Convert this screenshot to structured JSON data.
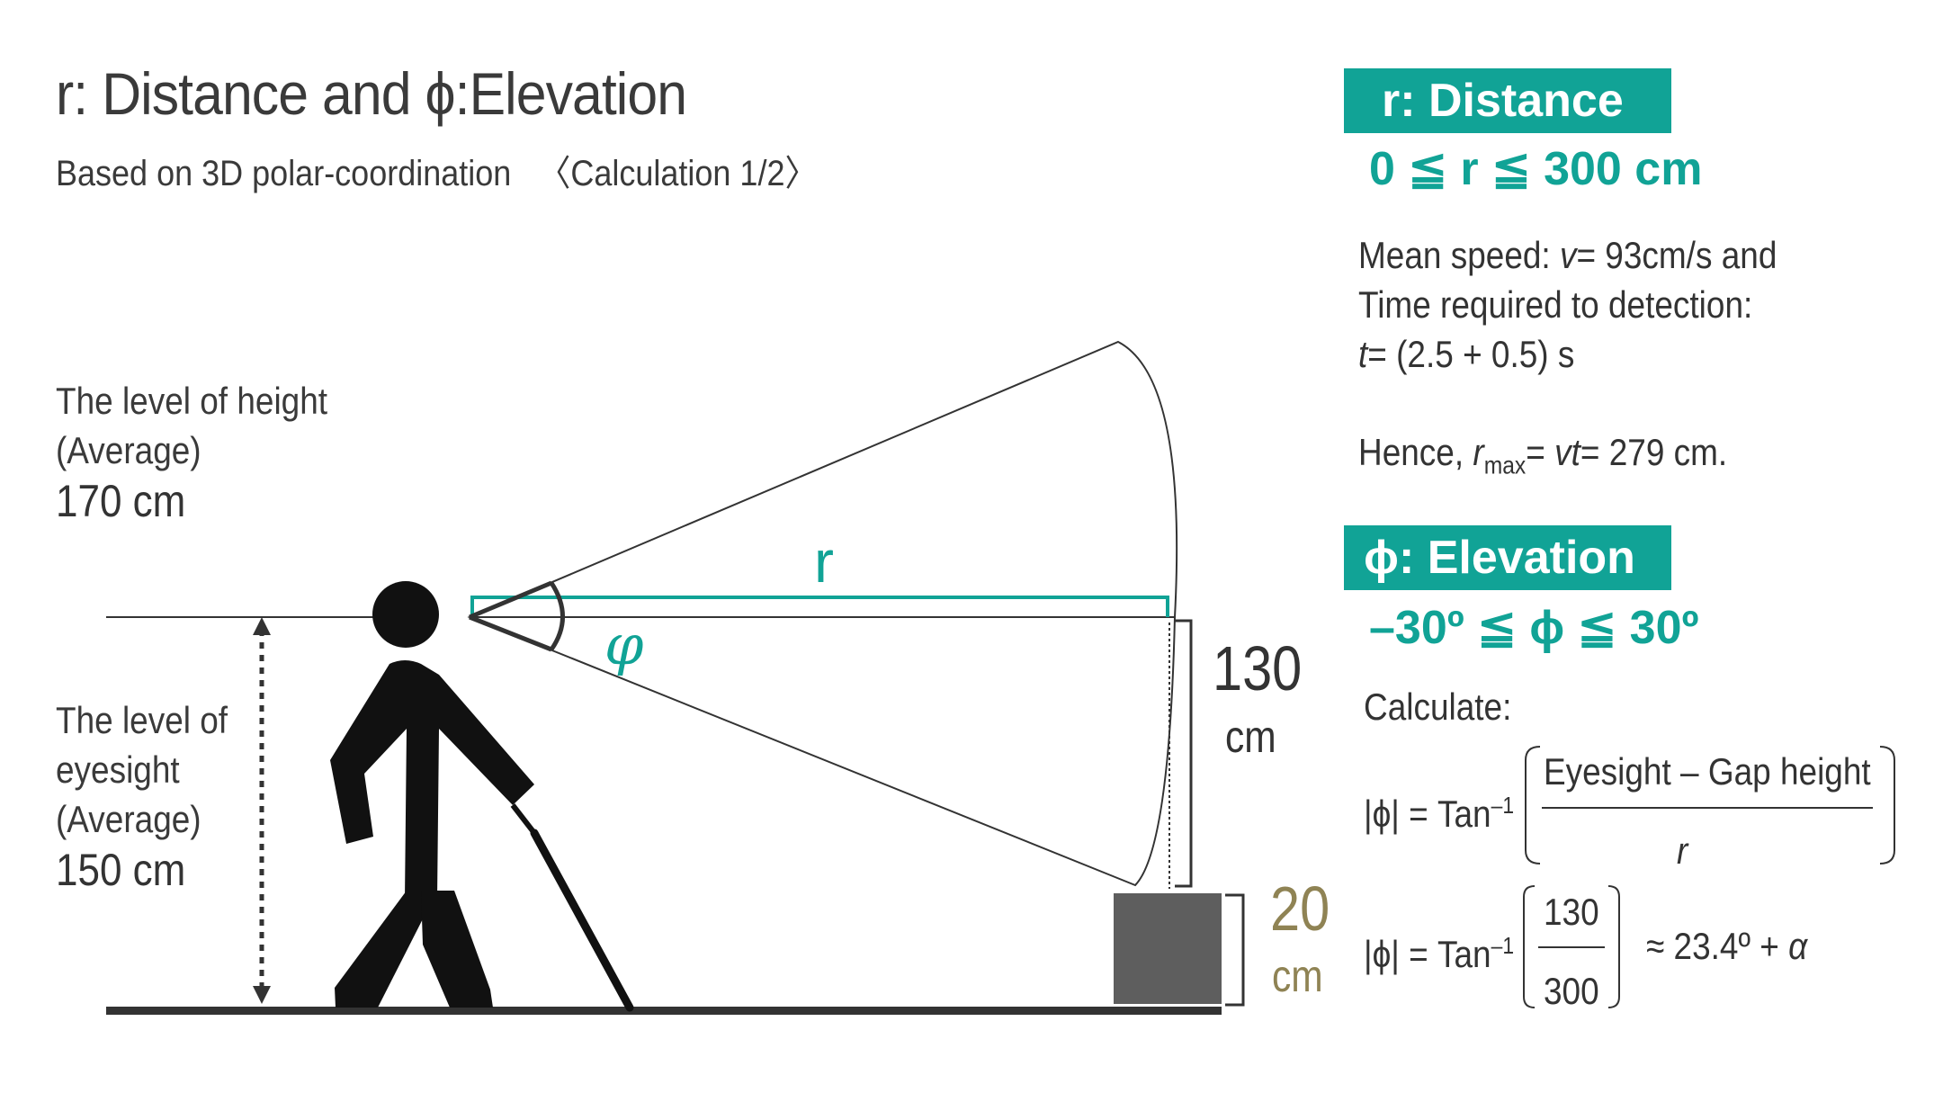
{
  "title": "r: Distance and ϕ:Elevation",
  "subtitle": "Based on 3D polar-coordination   〈Calculation 1/2〉",
  "height_level": {
    "line1": "The level of height",
    "line2": "(Average)",
    "value": "170 cm"
  },
  "eyesight_level": {
    "line1": "The level of",
    "line2": "eyesight",
    "line3": "(Average)",
    "value": "150 cm"
  },
  "diagram": {
    "r_label": "r",
    "phi_label": "φ",
    "gap_value": "130",
    "gap_unit": "cm",
    "obstacle_value": "20",
    "obstacle_unit": "cm"
  },
  "distance_panel": {
    "header": "r: Distance",
    "range": "0 ≦ r ≦ 300 cm",
    "speed_prefix": "Mean speed: ",
    "speed_var": "v",
    "speed_value": "= 93cm/s and",
    "time_line": "Time required to detection:",
    "time_var": "t",
    "time_value": "= (2.5 + 0.5) s",
    "hence_prefix": "Hence, ",
    "r_var": "r",
    "r_sub": "max",
    "hence_eq": "= ",
    "vt": "vt",
    "result": "= 279 cm."
  },
  "elevation_panel": {
    "header": "ϕ: Elevation",
    "range": "–30º ≦ ϕ ≦ 30º",
    "calculate": "Calculate:",
    "formula_lhs": "|ϕ| = Tan",
    "formula_exp": "–1",
    "numerator": "Eyesight – Gap height",
    "denominator": "r",
    "num2": "130",
    "den2": "300",
    "approx": "≈ 23.4º +",
    "alpha": "α"
  },
  "colors": {
    "teal": "#11a396",
    "olive": "#8f8354",
    "dark": "#111111",
    "obstacle": "#5e5e5e"
  }
}
